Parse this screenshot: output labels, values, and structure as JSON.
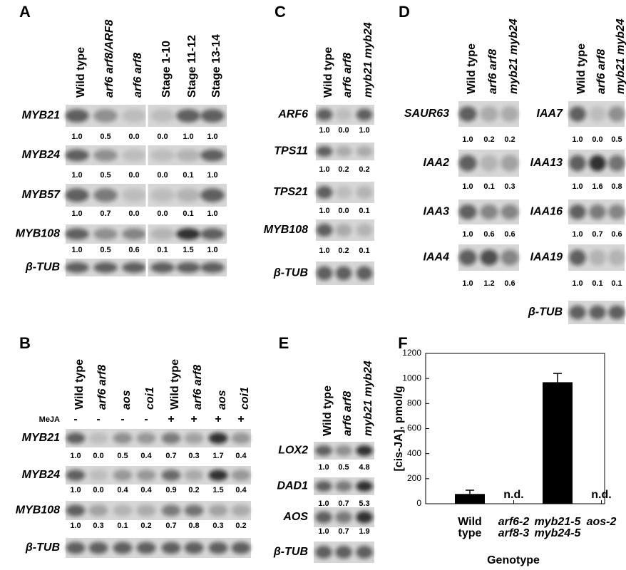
{
  "panels": {
    "A": {
      "label": "A",
      "columns": [
        "Wild type",
        "arf6 arf8/ARF8",
        "arf6 arf8",
        "Stage 1-10",
        "Stage 11-12",
        "Stage 13-14"
      ],
      "rows": [
        {
          "gene": "MYB21",
          "values": [
            "1.0",
            "0.5",
            "0.0",
            "0.0",
            "1.0",
            "1.0"
          ]
        },
        {
          "gene": "MYB24",
          "values": [
            "1.0",
            "0.5",
            "0.0",
            "0.0",
            "0.1",
            "1.0"
          ]
        },
        {
          "gene": "MYB57",
          "values": [
            "1.0",
            "0.7",
            "0.0",
            "0.0",
            "0.1",
            "1.0"
          ]
        },
        {
          "gene": "MYB108",
          "values": [
            "1.0",
            "0.5",
            "0.6",
            "0.1",
            "1.5",
            "1.0"
          ]
        },
        {
          "gene": "β-TUB"
        }
      ]
    },
    "B": {
      "label": "B",
      "columns": [
        "Wild type",
        "arf6 arf8",
        "aos",
        "coi1",
        "Wild type",
        "arf6 arf8",
        "aos",
        "coi1"
      ],
      "treatment_label": "MeJA",
      "treatment": [
        "-",
        "-",
        "-",
        "-",
        "+",
        "+",
        "+",
        "+"
      ],
      "rows": [
        {
          "gene": "MYB21",
          "values": [
            "1.0",
            "0.0",
            "0.5",
            "0.4",
            "0.7",
            "0.3",
            "1.7",
            "0.4"
          ]
        },
        {
          "gene": "MYB24",
          "values": [
            "1.0",
            "0.0",
            "0.4",
            "0.4",
            "0.9",
            "0.2",
            "1.5",
            "0.4"
          ]
        },
        {
          "gene": "MYB108",
          "values": [
            "1.0",
            "0.3",
            "0.1",
            "0.2",
            "0.7",
            "0.8",
            "0.3",
            "0.2"
          ]
        },
        {
          "gene": "β-TUB"
        }
      ]
    },
    "C": {
      "label": "C",
      "columns": [
        "Wild type",
        "arf6 arf8",
        "myb21 myb24"
      ],
      "rows": [
        {
          "gene": "ARF6",
          "values": [
            "1.0",
            "0.0",
            "1.0"
          ]
        },
        {
          "gene": "TPS11",
          "values": [
            "1.0",
            "0.2",
            "0.2"
          ]
        },
        {
          "gene": "TPS21",
          "values": [
            "1.0",
            "0.0",
            "0.1"
          ]
        },
        {
          "gene": "MYB108",
          "values": [
            "1.0",
            "0.2",
            "0.1"
          ]
        },
        {
          "gene": "β-TUB"
        }
      ]
    },
    "D": {
      "label": "D",
      "groups": [
        {
          "columns": [
            "Wild type",
            "arf6 arf8",
            "myb21 myb24"
          ],
          "rows": [
            {
              "gene": "SAUR63",
              "values": [
                "1.0",
                "0.2",
                "0.2"
              ]
            },
            {
              "gene": "IAA2",
              "values": [
                "1.0",
                "0.1",
                "0.3"
              ]
            },
            {
              "gene": "IAA3",
              "values": [
                "1.0",
                "0.6",
                "0.6"
              ]
            },
            {
              "gene": "IAA4",
              "values": [
                "1.0",
                "1.2",
                "0.6"
              ]
            }
          ]
        },
        {
          "columns": [
            "Wild type",
            "arf6 arf8",
            "myb21 myb24"
          ],
          "rows": [
            {
              "gene": "IAA7",
              "values": [
                "1.0",
                "0.0",
                "0.5"
              ]
            },
            {
              "gene": "IAA13",
              "values": [
                "1.0",
                "1.6",
                "0.8"
              ]
            },
            {
              "gene": "IAA16",
              "values": [
                "1.0",
                "0.7",
                "0.6"
              ]
            },
            {
              "gene": "IAA19",
              "values": [
                "1.0",
                "0.1",
                "0.1"
              ]
            },
            {
              "gene": "β-TUB"
            }
          ]
        }
      ]
    },
    "E": {
      "label": "E",
      "columns": [
        "Wild type",
        "arf6 arf8",
        "myb21 myb24"
      ],
      "rows": [
        {
          "gene": "LOX2",
          "values": [
            "1.0",
            "0.5",
            "4.8"
          ]
        },
        {
          "gene": "DAD1",
          "values": [
            "1.0",
            "0.7",
            "5.3"
          ]
        },
        {
          "gene": "AOS",
          "values": [
            "1.0",
            "0.7",
            "1.9"
          ]
        },
        {
          "gene": "β-TUB"
        }
      ]
    },
    "F": {
      "label": "F"
    }
  },
  "chart_data": {
    "type": "bar",
    "categories": [
      "Wild type",
      "arf6-2 arf8-3",
      "myb21-5 myb24-5",
      "aos-2"
    ],
    "values": [
      78,
      null,
      970,
      null
    ],
    "errors": [
      30,
      null,
      70,
      null
    ],
    "value_labels": [
      null,
      "n.d.",
      null,
      "n.d."
    ],
    "color": "#000000",
    "x_label": "Genotype",
    "y_label": "[cis-JA], pmol/g",
    "ylim": [
      0,
      1200
    ],
    "yticks": [
      0,
      200,
      400,
      600,
      800,
      1000,
      1200
    ]
  }
}
